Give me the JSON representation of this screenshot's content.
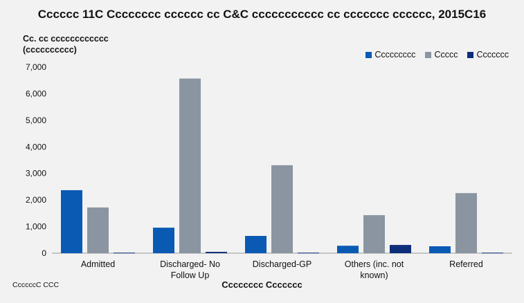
{
  "chart_data": {
    "type": "bar",
    "title": "Cccccc 11C Cccccccc cccccc cc C&C ccccccccccc cc ccccccc cccccc, 2015C16",
    "ylabel": "Cc. cc cccccccccccc (cccccccccc)",
    "xlabel": "Cccccccc Ccccccc",
    "source": "CcccccC CCC",
    "categories": [
      "Admitted",
      "Discharged- No Follow Up",
      "Discharged-GP",
      "Others (inc. not known)",
      "Referred"
    ],
    "series": [
      {
        "name": "Ccccccccc",
        "color": "#0a5ab4",
        "values": [
          2370,
          960,
          650,
          280,
          260
        ]
      },
      {
        "name": "Ccccc",
        "color": "#8a95a1",
        "values": [
          1720,
          6570,
          3310,
          1430,
          2260
        ]
      },
      {
        "name": "Ccccccc",
        "color": "#0d2e7a",
        "values": [
          20,
          50,
          20,
          310,
          20
        ]
      }
    ],
    "ylim": [
      0,
      7000
    ],
    "yticks": [
      0,
      1000,
      2000,
      3000,
      4000,
      5000,
      6000,
      7000
    ],
    "ytick_labels": [
      "0",
      "1,000",
      "2,000",
      "3,000",
      "4,000",
      "5,000",
      "6,000",
      "7,000"
    ],
    "grid": false,
    "legend_position": "top-right"
  }
}
